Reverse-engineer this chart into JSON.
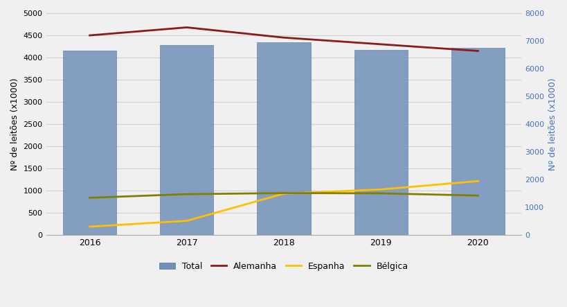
{
  "years": [
    2016,
    2017,
    2018,
    2019,
    2020
  ],
  "total_bars": [
    4150,
    4280,
    4350,
    4180,
    4220
  ],
  "alemanha": [
    4500,
    4680,
    4450,
    4300,
    4150
  ],
  "espanha": [
    310,
    520,
    1500,
    1650,
    1950
  ],
  "belgica": [
    1350,
    1480,
    1520,
    1510,
    1430
  ],
  "bar_color": "#7090b8",
  "bar_edge_color": "#5a7aa8",
  "alemanha_color": "#8b1a1a",
  "espanha_color": "#ffc000",
  "belgica_color": "#808000",
  "left_ylim": [
    0,
    5000
  ],
  "right_ylim": [
    0,
    8000
  ],
  "left_yticks": [
    0,
    500,
    1000,
    1500,
    2000,
    2500,
    3000,
    3500,
    4000,
    4500,
    5000
  ],
  "right_yticks": [
    0,
    1000,
    2000,
    3000,
    4000,
    5000,
    6000,
    7000,
    8000
  ],
  "ylabel_left": "Nº de leitões (x1000)",
  "ylabel_right": "Nº de leitões (x1000)",
  "legend_labels": [
    "Total",
    "Alemanha",
    "Espanha",
    "Bélgica"
  ],
  "background_color": "#f0f0f0",
  "grid_color": "#d0d0d0",
  "bar_width": 0.55,
  "line_width": 2.0,
  "right_label_color": "#4472c4",
  "xlim": [
    2015.55,
    2020.45
  ]
}
